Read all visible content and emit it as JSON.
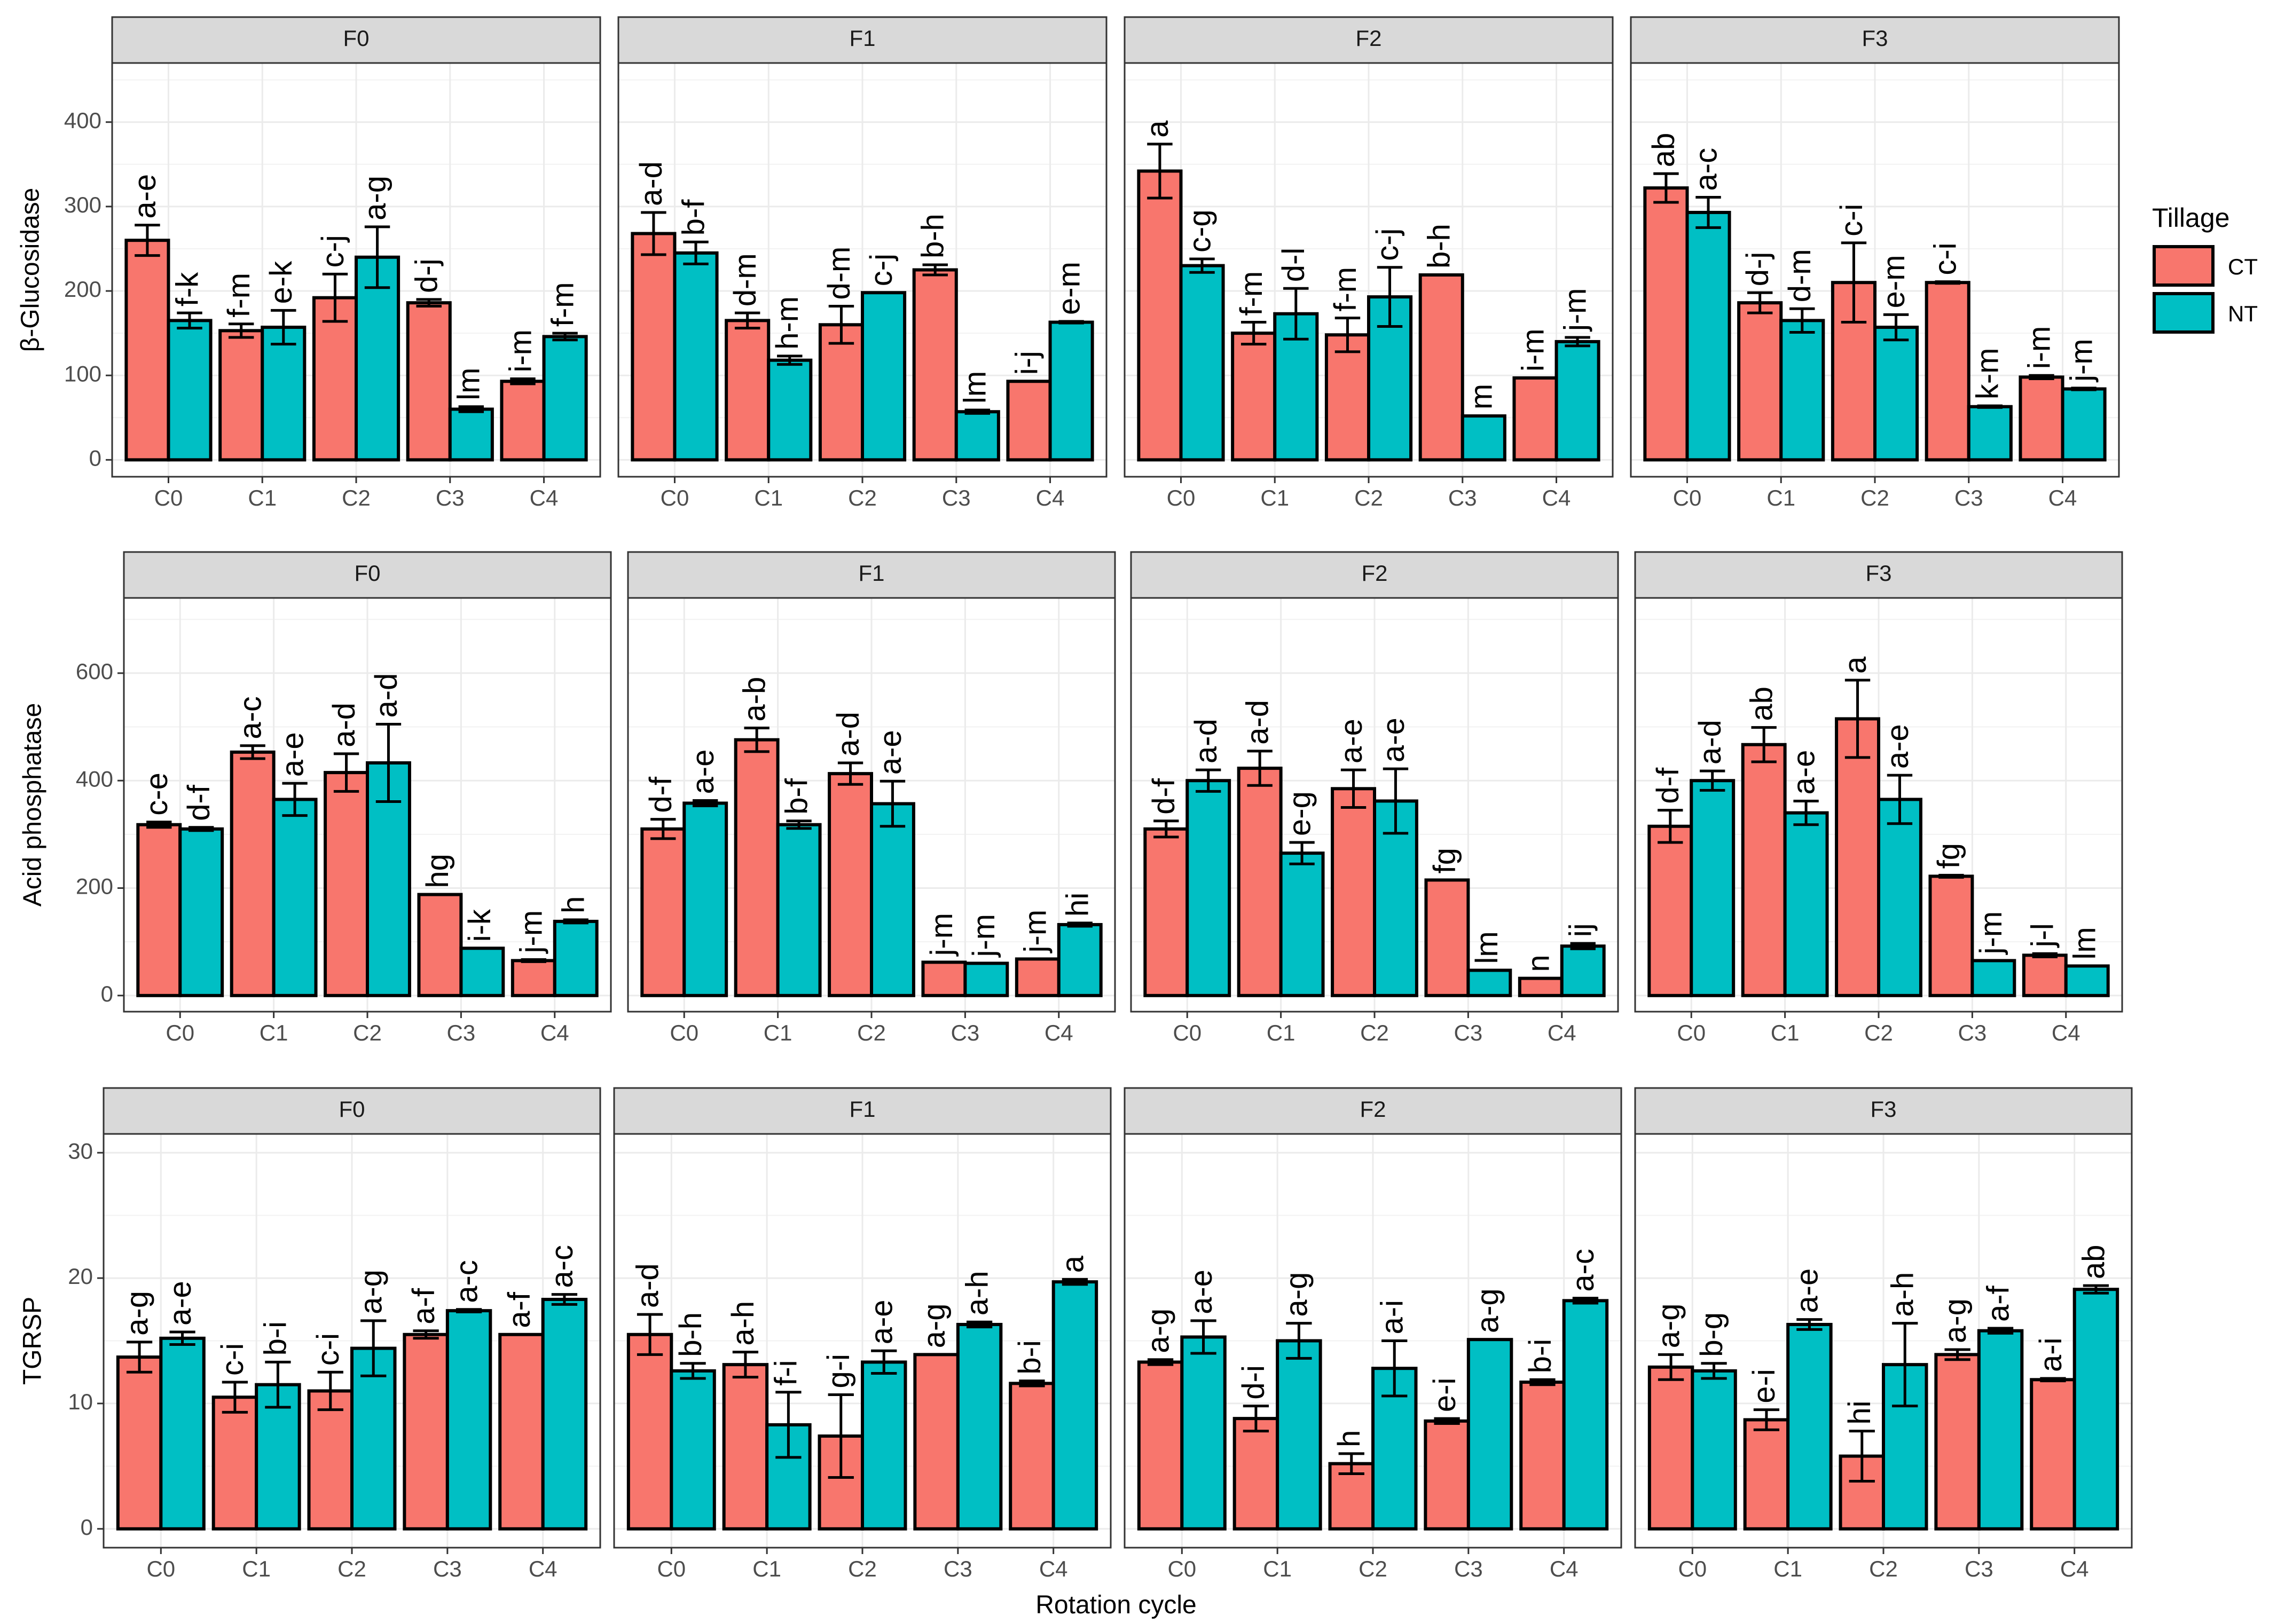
{
  "x_axis_title": "Rotation cycle",
  "legend": {
    "title": "Tillage",
    "items": [
      {
        "label": "CT",
        "color": "#F8766D"
      },
      {
        "label": "NT",
        "color": "#00BFC4"
      }
    ]
  },
  "chart_data": [
    {
      "type": "bar",
      "ylabel": "β-Glucosidase",
      "ylim": [
        -20,
        470
      ],
      "yticks": [
        0,
        100,
        200,
        300,
        400
      ],
      "categories": [
        "C0",
        "C1",
        "C2",
        "C3",
        "C4"
      ],
      "series_names": [
        "CT",
        "NT"
      ],
      "panels": [
        {
          "facet": "F0",
          "means": [
            [
              260,
              165
            ],
            [
              153,
              157
            ],
            [
              192,
              240
            ],
            [
              186,
              60
            ],
            [
              93,
              146
            ]
          ],
          "errors": [
            [
              18,
              9
            ],
            [
              8,
              20
            ],
            [
              28,
              36
            ],
            [
              4,
              3
            ],
            [
              3,
              4
            ]
          ],
          "letters": [
            [
              "a-e",
              "f-k"
            ],
            [
              "f-m",
              "e-k"
            ],
            [
              "c-j",
              "a-g"
            ],
            [
              "d-j",
              "lm"
            ],
            [
              "i-m",
              "f-m"
            ]
          ]
        },
        {
          "facet": "F1",
          "means": [
            [
              268,
              245
            ],
            [
              165,
              118
            ],
            [
              160,
              198
            ],
            [
              225,
              57
            ],
            [
              93,
              163
            ]
          ],
          "errors": [
            [
              25,
              13
            ],
            [
              9,
              5
            ],
            [
              22,
              0
            ],
            [
              6,
              2
            ],
            [
              0,
              1
            ]
          ],
          "letters": [
            [
              "a-d",
              "b-f"
            ],
            [
              "d-m",
              "h-m"
            ],
            [
              "d-m",
              "c-j"
            ],
            [
              "b-h",
              "lm"
            ],
            [
              "i-j",
              "e-m"
            ]
          ]
        },
        {
          "facet": "F2",
          "means": [
            [
              342,
              230
            ],
            [
              150,
              173
            ],
            [
              148,
              193
            ],
            [
              219,
              52
            ],
            [
              97,
              140
            ]
          ],
          "errors": [
            [
              32,
              8
            ],
            [
              13,
              30
            ],
            [
              20,
              35
            ],
            [
              0,
              0
            ],
            [
              0,
              5
            ]
          ],
          "letters": [
            [
              "a",
              "c-g"
            ],
            [
              "f-m",
              "d-l"
            ],
            [
              "f-m",
              "c-j"
            ],
            [
              "b-h",
              "m"
            ],
            [
              "i-m",
              "j-m"
            ]
          ]
        },
        {
          "facet": "F3",
          "means": [
            [
              322,
              293
            ],
            [
              186,
              165
            ],
            [
              210,
              157
            ],
            [
              210,
              63
            ],
            [
              98,
              84
            ]
          ],
          "errors": [
            [
              17,
              18
            ],
            [
              12,
              14
            ],
            [
              47,
              15
            ],
            [
              1,
              1
            ],
            [
              2,
              1
            ]
          ],
          "letters": [
            [
              "ab",
              "a-c"
            ],
            [
              "d-j",
              "d-m"
            ],
            [
              "c-i",
              "e-m"
            ],
            [
              "c-i",
              "k-m"
            ],
            [
              "i-m",
              "j-m"
            ]
          ]
        }
      ]
    },
    {
      "type": "bar",
      "ylabel": "Acid phosphatase",
      "ylim": [
        -30,
        740
      ],
      "yticks": [
        0,
        200,
        400,
        600
      ],
      "categories": [
        "C0",
        "C1",
        "C2",
        "C3",
        "C4"
      ],
      "series_names": [
        "CT",
        "NT"
      ],
      "panels": [
        {
          "facet": "F0",
          "means": [
            [
              318,
              310
            ],
            [
              453,
              365
            ],
            [
              415,
              433
            ],
            [
              188,
              88
            ],
            [
              65,
              138
            ]
          ],
          "errors": [
            [
              5,
              3
            ],
            [
              12,
              30
            ],
            [
              35,
              72
            ],
            [
              0,
              0
            ],
            [
              2,
              3
            ]
          ],
          "letters": [
            [
              "c-e",
              "d-f"
            ],
            [
              "a-c",
              "a-e"
            ],
            [
              "a-d",
              "a-d"
            ],
            [
              "hg",
              "i-k"
            ],
            [
              "j-m",
              "h"
            ]
          ]
        },
        {
          "facet": "F1",
          "means": [
            [
              310,
              358
            ],
            [
              476,
              318
            ],
            [
              413,
              357
            ],
            [
              62,
              60
            ],
            [
              68,
              132
            ]
          ],
          "errors": [
            [
              18,
              5
            ],
            [
              22,
              7
            ],
            [
              20,
              42
            ],
            [
              0,
              0
            ],
            [
              0,
              3
            ]
          ],
          "letters": [
            [
              "d-f",
              "a-e"
            ],
            [
              "a-b",
              "b-f"
            ],
            [
              "a-d",
              "a-e"
            ],
            [
              "j-m",
              "j-m"
            ],
            [
              "j-m",
              "hi"
            ]
          ]
        },
        {
          "facet": "F2",
          "means": [
            [
              310,
              400
            ],
            [
              423,
              265
            ],
            [
              385,
              362
            ],
            [
              215,
              47
            ],
            [
              32,
              92
            ]
          ],
          "errors": [
            [
              15,
              20
            ],
            [
              32,
              20
            ],
            [
              35,
              60
            ],
            [
              0,
              0
            ],
            [
              0,
              5
            ]
          ],
          "letters": [
            [
              "d-f",
              "a-d"
            ],
            [
              "a-d",
              "e-g"
            ],
            [
              "a-e",
              "a-e"
            ],
            [
              "fg",
              "lm"
            ],
            [
              "n",
              "ij"
            ]
          ]
        },
        {
          "facet": "F3",
          "means": [
            [
              315,
              400
            ],
            [
              467,
              340
            ],
            [
              515,
              365
            ],
            [
              222,
              65
            ],
            [
              75,
              55
            ]
          ],
          "errors": [
            [
              30,
              18
            ],
            [
              32,
              22
            ],
            [
              72,
              45
            ],
            [
              2,
              0
            ],
            [
              3,
              0
            ]
          ],
          "letters": [
            [
              "d-f",
              "a-d"
            ],
            [
              "ab",
              "a-e"
            ],
            [
              "a",
              "a-e"
            ],
            [
              "fg",
              "j-m"
            ],
            [
              "j-l",
              "lm"
            ]
          ]
        }
      ]
    },
    {
      "type": "bar",
      "ylabel": "TGRSP",
      "ylim": [
        -1.5,
        31.5
      ],
      "yticks": [
        0,
        10,
        20,
        30
      ],
      "categories": [
        "C0",
        "C1",
        "C2",
        "C3",
        "C4"
      ],
      "series_names": [
        "CT",
        "NT"
      ],
      "panels": [
        {
          "facet": "F0",
          "means": [
            [
              13.7,
              15.2
            ],
            [
              10.5,
              11.5
            ],
            [
              11,
              14.4
            ],
            [
              15.5,
              17.4
            ],
            [
              15.5,
              18.3
            ]
          ],
          "errors": [
            [
              1.2,
              0.5
            ],
            [
              1.2,
              1.8
            ],
            [
              1.5,
              2.2
            ],
            [
              0.3,
              0.1
            ],
            [
              0,
              0.4
            ]
          ],
          "letters": [
            [
              "a-g",
              "a-e"
            ],
            [
              "c-i",
              "b-i"
            ],
            [
              "c-i",
              "a-g"
            ],
            [
              "a-f",
              "a-c"
            ],
            [
              "a-f",
              "a-c"
            ]
          ]
        },
        {
          "facet": "F1",
          "means": [
            [
              15.5,
              12.6
            ],
            [
              13.1,
              8.3
            ],
            [
              7.4,
              13.3
            ],
            [
              13.9,
              16.3
            ],
            [
              11.6,
              19.7
            ]
          ],
          "errors": [
            [
              1.6,
              0.6
            ],
            [
              1,
              2.6
            ],
            [
              3.3,
              0.9
            ],
            [
              0,
              0.2
            ],
            [
              0.2,
              0.2
            ]
          ],
          "letters": [
            [
              "a-d",
              "b-h"
            ],
            [
              "a-h",
              "f-i"
            ],
            [
              "g-i",
              "a-e"
            ],
            [
              "a-g",
              "a-h"
            ],
            [
              "b-i",
              "a"
            ]
          ]
        },
        {
          "facet": "F2",
          "means": [
            [
              13.3,
              15.3
            ],
            [
              8.8,
              15
            ],
            [
              5.2,
              12.8
            ],
            [
              8.6,
              15.1
            ],
            [
              11.7,
              18.2
            ]
          ],
          "errors": [
            [
              0.2,
              1.3
            ],
            [
              1,
              1.4
            ],
            [
              0.8,
              2.2
            ],
            [
              0.2,
              0
            ],
            [
              0.2,
              0.2
            ]
          ],
          "letters": [
            [
              "a-g",
              "a-e"
            ],
            [
              "d-i",
              "a-g"
            ],
            [
              "h",
              "a-i"
            ],
            [
              "e-i",
              "a-g"
            ],
            [
              "b-i",
              "a-c"
            ]
          ]
        },
        {
          "facet": "F3",
          "means": [
            [
              12.9,
              12.6
            ],
            [
              8.7,
              16.3
            ],
            [
              5.8,
              13.1
            ],
            [
              13.9,
              15.8
            ],
            [
              11.9,
              19.1
            ]
          ],
          "errors": [
            [
              1,
              0.6
            ],
            [
              0.8,
              0.4
            ],
            [
              2,
              3.3
            ],
            [
              0.4,
              0.2
            ],
            [
              0.1,
              0.3
            ]
          ],
          "letters": [
            [
              "a-g",
              "b-g"
            ],
            [
              "e-i",
              "a-e"
            ],
            [
              "hi",
              "a-h"
            ],
            [
              "a-g",
              "a-f"
            ],
            [
              "a-i",
              "ab"
            ]
          ]
        }
      ]
    }
  ]
}
